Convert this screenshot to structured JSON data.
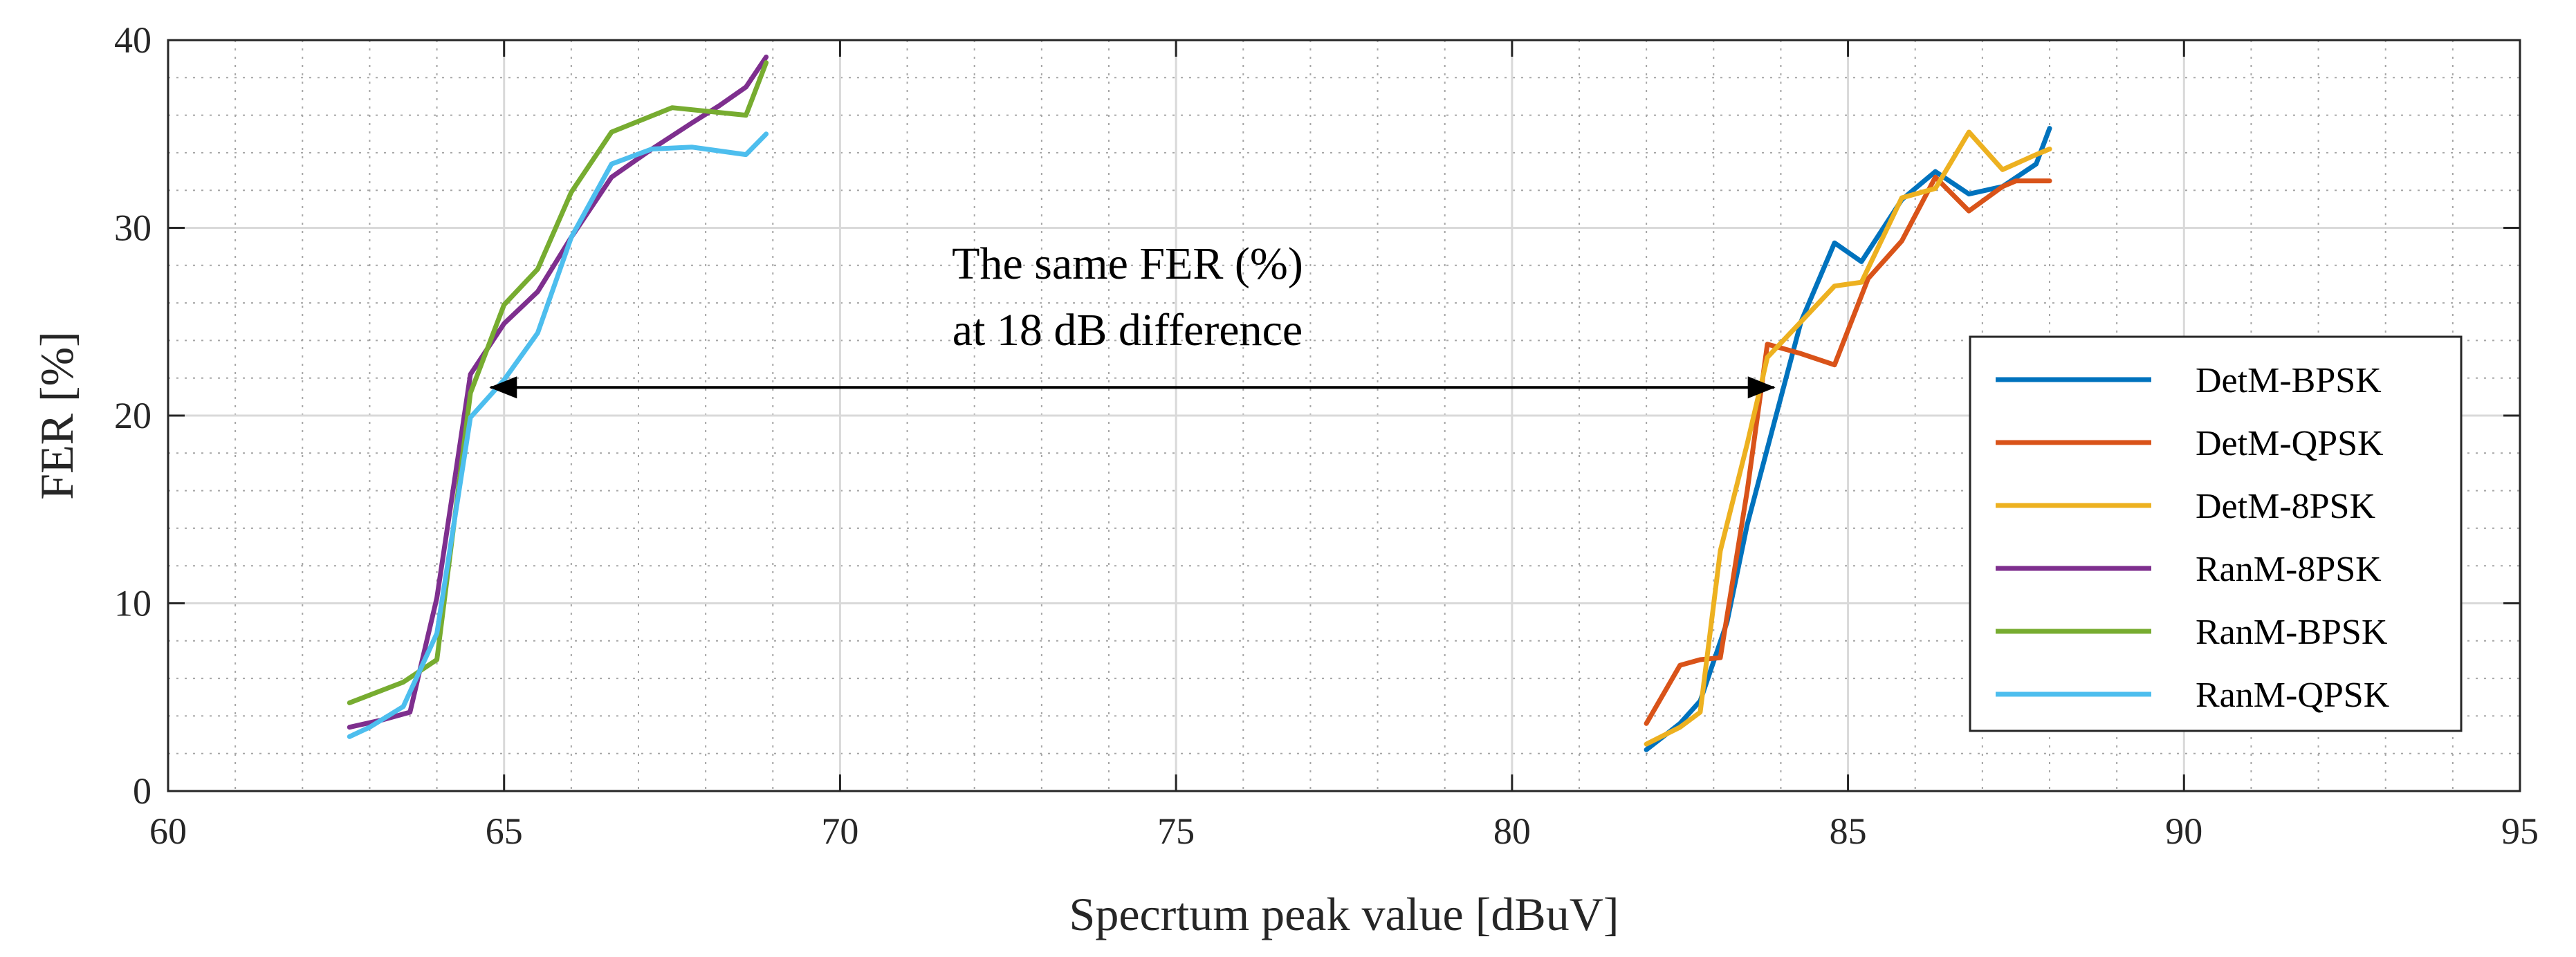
{
  "chart_data": {
    "type": "line",
    "title": "",
    "xlabel": "Specrtum peak value  [dBuV]",
    "ylabel": "FER [%]",
    "xlim": [
      60,
      95
    ],
    "ylim": [
      0,
      40
    ],
    "xticks": [
      60,
      65,
      70,
      75,
      80,
      85,
      90,
      95
    ],
    "yticks": [
      0,
      10,
      20,
      30,
      40
    ],
    "x_minor_step": 1,
    "y_minor_step": 2,
    "grid": "major and minor",
    "legend_position": "right",
    "annotation": {
      "lines": [
        "The same FER (%)",
        "at 18 dB difference"
      ],
      "arrow": {
        "from": [
          64.8,
          21.5
        ],
        "to": [
          83.9,
          21.5
        ],
        "double_headed": true
      }
    },
    "series": [
      {
        "name": "DetM-BPSK",
        "color": "#0072BD",
        "x": [
          82.0,
          82.5,
          82.8,
          83.2,
          83.5,
          83.9,
          84.3,
          84.8,
          85.2,
          85.8,
          86.3,
          86.8,
          87.3,
          87.8,
          88.0
        ],
        "y": [
          2.2,
          3.6,
          4.8,
          9.0,
          14.2,
          19.6,
          25.0,
          29.2,
          28.2,
          31.5,
          33.0,
          31.8,
          32.2,
          33.4,
          35.3
        ]
      },
      {
        "name": "DetM-QPSK",
        "color": "#D95319",
        "x": [
          82.0,
          82.5,
          82.8,
          83.1,
          83.5,
          83.8,
          84.3,
          84.8,
          85.3,
          85.8,
          86.3,
          86.8,
          87.3,
          87.5,
          88.0
        ],
        "y": [
          3.6,
          6.7,
          7.0,
          7.1,
          16.0,
          23.8,
          23.3,
          22.7,
          27.3,
          29.3,
          32.7,
          30.9,
          32.2,
          32.5,
          32.5
        ]
      },
      {
        "name": "DetM-8PSK",
        "color": "#EDB120",
        "x": [
          82.0,
          82.5,
          82.8,
          83.1,
          83.5,
          83.8,
          84.3,
          84.8,
          85.2,
          85.8,
          86.3,
          86.8,
          87.3,
          87.8,
          88.0
        ],
        "y": [
          2.5,
          3.4,
          4.2,
          12.8,
          18.5,
          23.1,
          25.0,
          26.9,
          27.1,
          31.6,
          32.1,
          35.1,
          33.1,
          33.9,
          34.2
        ]
      },
      {
        "name": "RanM-8PSK",
        "color": "#7E2F8E",
        "x": [
          62.7,
          63.2,
          63.6,
          64.0,
          64.5,
          65.0,
          65.5,
          66.0,
          66.6,
          67.2,
          67.8,
          68.2,
          68.6,
          68.9
        ],
        "y": [
          3.4,
          3.8,
          4.2,
          10.3,
          22.2,
          24.9,
          26.6,
          29.5,
          32.7,
          34.2,
          35.6,
          36.5,
          37.5,
          39.1
        ]
      },
      {
        "name": "RanM-BPSK",
        "color": "#77AC30",
        "x": [
          62.7,
          63.5,
          64.0,
          64.5,
          65.0,
          65.5,
          66.0,
          66.6,
          67.5,
          68.6,
          68.9
        ],
        "y": [
          4.7,
          5.8,
          7.0,
          21.2,
          25.9,
          27.8,
          31.9,
          35.1,
          36.4,
          36.0,
          38.8
        ]
      },
      {
        "name": "RanM-QPSK",
        "color": "#4DBEEE",
        "x": [
          62.7,
          63.0,
          63.5,
          64.0,
          64.5,
          65.0,
          65.5,
          66.0,
          66.6,
          67.2,
          67.8,
          68.6,
          68.9
        ],
        "y": [
          2.9,
          3.4,
          4.5,
          8.4,
          19.9,
          21.9,
          24.4,
          29.5,
          33.4,
          34.2,
          34.3,
          33.9,
          35.0
        ]
      }
    ]
  }
}
